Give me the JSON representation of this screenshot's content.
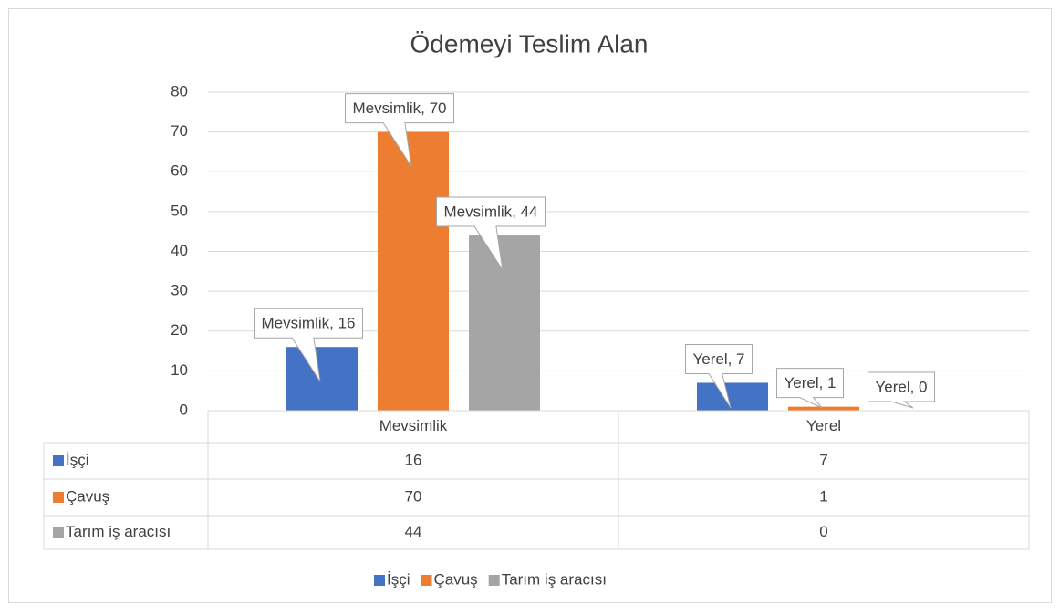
{
  "chart_data": {
    "type": "bar",
    "title": "Ödemeyi Teslim Alan",
    "categories": [
      "Mevsimlik",
      "Yerel"
    ],
    "series": [
      {
        "name": "İşçi",
        "color": "#4472c4",
        "values": [
          16,
          7
        ],
        "value_labels": [
          "Mevsimlik, 16",
          "Yerel, 7"
        ]
      },
      {
        "name": "Çavuş",
        "color": "#ed7d31",
        "values": [
          70,
          1
        ],
        "value_labels": [
          "Mevsimlik, 70",
          "Yerel, 1"
        ]
      },
      {
        "name": "Tarım iş aracısı",
        "color": "#a5a5a5",
        "values": [
          44,
          0
        ],
        "value_labels": [
          "Mevsimlik, 44",
          "Yerel, 0"
        ]
      }
    ],
    "ylim": [
      0,
      80
    ],
    "yticks": [
      0,
      10,
      20,
      30,
      40,
      50,
      60,
      70,
      80
    ],
    "grid": true,
    "legend": "bottom",
    "data_table": true
  }
}
